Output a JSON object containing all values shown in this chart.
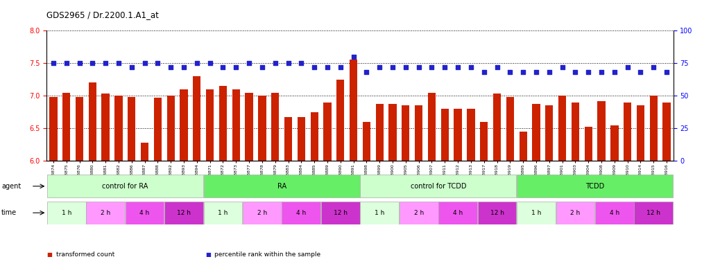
{
  "title": "GDS2965 / Dr.2200.1.A1_at",
  "samples": [
    "GSM228874",
    "GSM228875",
    "GSM228876",
    "GSM228880",
    "GSM228881",
    "GSM228882",
    "GSM228886",
    "GSM228887",
    "GSM228888",
    "GSM228892",
    "GSM228893",
    "GSM228894",
    "GSM228871",
    "GSM228872",
    "GSM228873",
    "GSM228877",
    "GSM228878",
    "GSM228879",
    "GSM228883",
    "GSM228884",
    "GSM228885",
    "GSM228889",
    "GSM228890",
    "GSM228891",
    "GSM228898",
    "GSM228899",
    "GSM228900",
    "GSM228905",
    "GSM228906",
    "GSM228907",
    "GSM228911",
    "GSM228912",
    "GSM228913",
    "GSM228917",
    "GSM228918",
    "GSM228919",
    "GSM228895",
    "GSM228896",
    "GSM228897",
    "GSM228901",
    "GSM228903",
    "GSM228904",
    "GSM228908",
    "GSM228909",
    "GSM228910",
    "GSM228914",
    "GSM228915",
    "GSM228916"
  ],
  "bar_values": [
    6.98,
    7.05,
    6.98,
    7.2,
    7.03,
    7.0,
    6.98,
    6.28,
    6.97,
    7.0,
    7.1,
    7.3,
    7.1,
    7.15,
    7.1,
    7.05,
    7.0,
    7.05,
    6.67,
    6.67,
    6.75,
    6.9,
    7.25,
    7.55,
    6.6,
    6.87,
    6.87,
    6.85,
    6.85,
    7.05,
    6.8,
    6.8,
    6.8,
    6.6,
    7.03,
    6.98,
    6.45,
    6.87,
    6.85,
    7.0,
    6.9,
    6.52,
    6.92,
    6.55,
    6.9,
    6.85,
    7.0,
    6.9
  ],
  "dot_values": [
    75,
    75,
    75,
    75,
    75,
    75,
    72,
    75,
    75,
    72,
    72,
    75,
    75,
    72,
    72,
    75,
    72,
    75,
    75,
    75,
    72,
    72,
    72,
    80,
    68,
    72,
    72,
    72,
    72,
    72,
    72,
    72,
    72,
    68,
    72,
    68,
    68,
    68,
    68,
    72,
    68,
    68,
    68,
    68,
    72,
    68,
    72,
    68
  ],
  "ylim_left": [
    6.0,
    8.0
  ],
  "ylim_right": [
    0,
    100
  ],
  "yticks_left": [
    6.0,
    6.5,
    7.0,
    7.5,
    8.0
  ],
  "yticks_right": [
    0,
    25,
    50,
    75,
    100
  ],
  "bar_color": "#CC2200",
  "dot_color": "#2222CC",
  "agent_groups": [
    {
      "label": "control for RA",
      "start": 0,
      "end": 12,
      "color": "#CCFFCC"
    },
    {
      "label": "RA",
      "start": 12,
      "end": 24,
      "color": "#66EE66"
    },
    {
      "label": "control for TCDD",
      "start": 24,
      "end": 36,
      "color": "#CCFFCC"
    },
    {
      "label": "TCDD",
      "start": 36,
      "end": 48,
      "color": "#66EE66"
    }
  ],
  "time_groups": [
    {
      "label": "1 h",
      "start": 0,
      "end": 3,
      "color": "#DDFFDD"
    },
    {
      "label": "2 h",
      "start": 3,
      "end": 6,
      "color": "#FF99FF"
    },
    {
      "label": "4 h",
      "start": 6,
      "end": 9,
      "color": "#EE55EE"
    },
    {
      "label": "12 h",
      "start": 9,
      "end": 12,
      "color": "#CC33CC"
    },
    {
      "label": "1 h",
      "start": 12,
      "end": 15,
      "color": "#DDFFDD"
    },
    {
      "label": "2 h",
      "start": 15,
      "end": 18,
      "color": "#FF99FF"
    },
    {
      "label": "4 h",
      "start": 18,
      "end": 21,
      "color": "#EE55EE"
    },
    {
      "label": "12 h",
      "start": 21,
      "end": 24,
      "color": "#CC33CC"
    },
    {
      "label": "1 h",
      "start": 24,
      "end": 27,
      "color": "#DDFFDD"
    },
    {
      "label": "2 h",
      "start": 27,
      "end": 30,
      "color": "#FF99FF"
    },
    {
      "label": "4 h",
      "start": 30,
      "end": 33,
      "color": "#EE55EE"
    },
    {
      "label": "12 h",
      "start": 33,
      "end": 36,
      "color": "#CC33CC"
    },
    {
      "label": "1 h",
      "start": 36,
      "end": 39,
      "color": "#DDFFDD"
    },
    {
      "label": "2 h",
      "start": 39,
      "end": 42,
      "color": "#FF99FF"
    },
    {
      "label": "4 h",
      "start": 42,
      "end": 45,
      "color": "#EE55EE"
    },
    {
      "label": "12 h",
      "start": 45,
      "end": 48,
      "color": "#CC33CC"
    }
  ],
  "legend_items": [
    {
      "label": "transformed count",
      "color": "#CC2200"
    },
    {
      "label": "percentile rank within the sample",
      "color": "#2222CC"
    }
  ],
  "background_color": "#FFFFFF"
}
